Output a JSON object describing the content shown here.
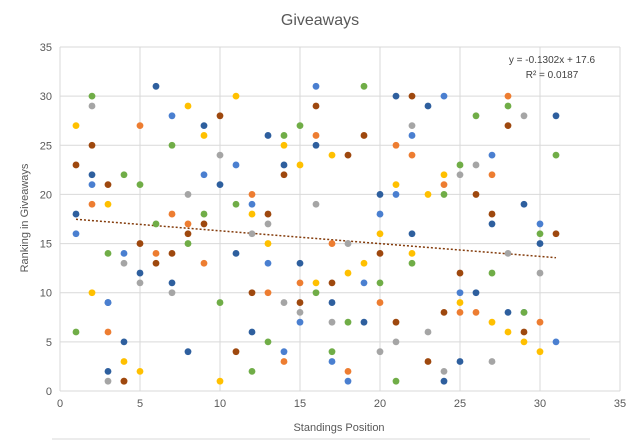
{
  "chart_data": {
    "type": "scatter",
    "title": "Giveaways",
    "xlabel": "Standings Position",
    "ylabel": "Ranking in Giveaways",
    "xlim": [
      0,
      35
    ],
    "ylim": [
      0,
      35
    ],
    "xticks": [
      0,
      5,
      10,
      15,
      20,
      25,
      30,
      35
    ],
    "yticks": [
      0,
      5,
      10,
      15,
      20,
      25,
      30,
      35
    ],
    "grid": "vertical and horizontal major gridlines",
    "legend": "none",
    "trendline": {
      "type": "linear",
      "slope": -0.1302,
      "intercept": 17.6,
      "x_range": [
        1,
        31
      ],
      "equation_label": "y = -0.1302x + 17.6",
      "r2_label": "R² = 0.0187",
      "color": "#843c0c"
    },
    "series": [
      {
        "color": "#2e5f9e",
        "points": [
          [
            1,
            18
          ],
          [
            2,
            22
          ],
          [
            3,
            9
          ],
          [
            3,
            2
          ],
          [
            4,
            5
          ],
          [
            5,
            12
          ],
          [
            6,
            31
          ],
          [
            7,
            11
          ],
          [
            8,
            4
          ],
          [
            9,
            27
          ],
          [
            10,
            21
          ],
          [
            11,
            14
          ],
          [
            12,
            6
          ],
          [
            13,
            26
          ],
          [
            14,
            23
          ],
          [
            15,
            13
          ],
          [
            16,
            25
          ],
          [
            17,
            9
          ],
          [
            19,
            7
          ],
          [
            20,
            20
          ],
          [
            21,
            30
          ],
          [
            22,
            16
          ],
          [
            23,
            29
          ],
          [
            24,
            1
          ],
          [
            25,
            3
          ],
          [
            26,
            10
          ],
          [
            27,
            17
          ],
          [
            28,
            8
          ],
          [
            29,
            19
          ],
          [
            30,
            15
          ],
          [
            31,
            28
          ]
        ]
      },
      {
        "color": "#4a7fd0",
        "points": [
          [
            1,
            16
          ],
          [
            2,
            21
          ],
          [
            3,
            9
          ],
          [
            4,
            14
          ],
          [
            7,
            28
          ],
          [
            9,
            22
          ],
          [
            11,
            23
          ],
          [
            12,
            19
          ],
          [
            13,
            13
          ],
          [
            14,
            4
          ],
          [
            15,
            7
          ],
          [
            16,
            31
          ],
          [
            17,
            3
          ],
          [
            18,
            1
          ],
          [
            19,
            11
          ],
          [
            20,
            18
          ],
          [
            21,
            20
          ],
          [
            22,
            26
          ],
          [
            24,
            30
          ],
          [
            25,
            10
          ],
          [
            27,
            24
          ],
          [
            29,
            8
          ],
          [
            30,
            17
          ],
          [
            31,
            5
          ]
        ]
      },
      {
        "color": "#ed7d31",
        "points": [
          [
            2,
            19
          ],
          [
            3,
            6
          ],
          [
            4,
            1
          ],
          [
            5,
            27
          ],
          [
            6,
            14
          ],
          [
            7,
            18
          ],
          [
            8,
            17
          ],
          [
            9,
            13
          ],
          [
            12,
            20
          ],
          [
            13,
            10
          ],
          [
            14,
            3
          ],
          [
            15,
            11
          ],
          [
            16,
            26
          ],
          [
            17,
            15
          ],
          [
            18,
            2
          ],
          [
            20,
            9
          ],
          [
            21,
            25
          ],
          [
            22,
            24
          ],
          [
            24,
            21
          ],
          [
            25,
            8
          ],
          [
            26,
            8
          ],
          [
            27,
            22
          ],
          [
            28,
            30
          ],
          [
            30,
            7
          ]
        ]
      },
      {
        "color": "#9e480e",
        "points": [
          [
            1,
            23
          ],
          [
            2,
            25
          ],
          [
            3,
            21
          ],
          [
            4,
            1
          ],
          [
            5,
            15
          ],
          [
            6,
            13
          ],
          [
            7,
            14
          ],
          [
            8,
            16
          ],
          [
            9,
            17
          ],
          [
            10,
            28
          ],
          [
            11,
            4
          ],
          [
            12,
            10
          ],
          [
            13,
            18
          ],
          [
            14,
            22
          ],
          [
            15,
            9
          ],
          [
            16,
            29
          ],
          [
            17,
            11
          ],
          [
            18,
            24
          ],
          [
            19,
            26
          ],
          [
            20,
            14
          ],
          [
            21,
            7
          ],
          [
            22,
            30
          ],
          [
            23,
            3
          ],
          [
            24,
            8
          ],
          [
            25,
            12
          ],
          [
            26,
            20
          ],
          [
            27,
            18
          ],
          [
            28,
            27
          ],
          [
            29,
            6
          ],
          [
            31,
            16
          ]
        ]
      },
      {
        "color": "#70ad47",
        "points": [
          [
            1,
            6
          ],
          [
            2,
            30
          ],
          [
            3,
            14
          ],
          [
            4,
            22
          ],
          [
            5,
            21
          ],
          [
            6,
            17
          ],
          [
            7,
            25
          ],
          [
            8,
            15
          ],
          [
            9,
            18
          ],
          [
            10,
            9
          ],
          [
            11,
            19
          ],
          [
            12,
            2
          ],
          [
            13,
            5
          ],
          [
            14,
            26
          ],
          [
            15,
            27
          ],
          [
            16,
            10
          ],
          [
            17,
            4
          ],
          [
            18,
            7
          ],
          [
            19,
            31
          ],
          [
            20,
            11
          ],
          [
            21,
            1
          ],
          [
            22,
            13
          ],
          [
            24,
            20
          ],
          [
            25,
            23
          ],
          [
            26,
            28
          ],
          [
            27,
            12
          ],
          [
            28,
            29
          ],
          [
            29,
            8
          ],
          [
            30,
            16
          ],
          [
            31,
            24
          ]
        ]
      },
      {
        "color": "#ffc000",
        "points": [
          [
            1,
            27
          ],
          [
            2,
            10
          ],
          [
            3,
            19
          ],
          [
            4,
            3
          ],
          [
            5,
            2
          ],
          [
            8,
            29
          ],
          [
            9,
            26
          ],
          [
            10,
            1
          ],
          [
            11,
            30
          ],
          [
            12,
            18
          ],
          [
            13,
            15
          ],
          [
            14,
            25
          ],
          [
            15,
            23
          ],
          [
            16,
            11
          ],
          [
            17,
            24
          ],
          [
            18,
            12
          ],
          [
            19,
            13
          ],
          [
            20,
            16
          ],
          [
            21,
            21
          ],
          [
            22,
            14
          ],
          [
            23,
            20
          ],
          [
            24,
            22
          ],
          [
            25,
            9
          ],
          [
            27,
            7
          ],
          [
            28,
            6
          ],
          [
            29,
            5
          ],
          [
            30,
            4
          ]
        ]
      },
      {
        "color": "#a5a5a5",
        "points": [
          [
            2,
            29
          ],
          [
            3,
            1
          ],
          [
            4,
            13
          ],
          [
            5,
            11
          ],
          [
            7,
            10
          ],
          [
            8,
            20
          ],
          [
            10,
            24
          ],
          [
            12,
            16
          ],
          [
            13,
            17
          ],
          [
            14,
            9
          ],
          [
            15,
            8
          ],
          [
            16,
            19
          ],
          [
            17,
            7
          ],
          [
            18,
            15
          ],
          [
            20,
            4
          ],
          [
            21,
            5
          ],
          [
            22,
            27
          ],
          [
            23,
            6
          ],
          [
            24,
            2
          ],
          [
            25,
            22
          ],
          [
            26,
            23
          ],
          [
            27,
            3
          ],
          [
            28,
            14
          ],
          [
            29,
            28
          ],
          [
            30,
            12
          ]
        ]
      }
    ]
  }
}
